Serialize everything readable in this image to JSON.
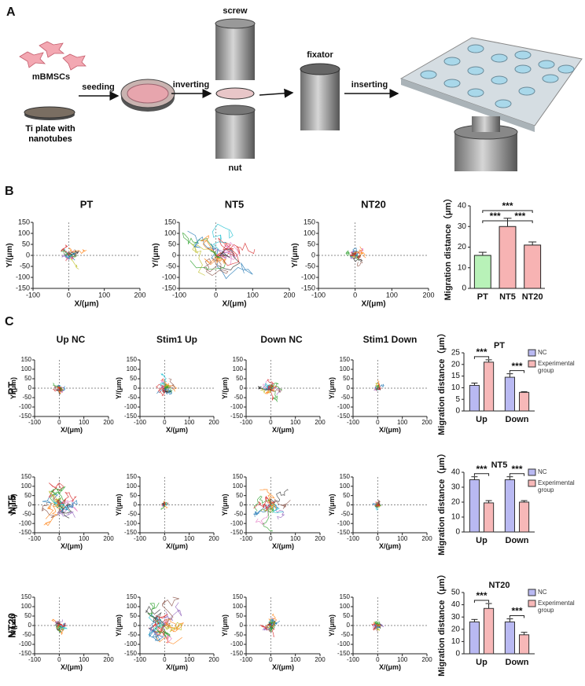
{
  "panel_a": {
    "label": "A",
    "cells": "mBMSCs",
    "plate": "Ti plate with nanotubes",
    "seeding": "seeding",
    "inverting": "inverting",
    "screw": "screw",
    "nut": "nut",
    "fixator": "fixator",
    "inserting": "inserting"
  },
  "panel_b": {
    "label": "B"
  },
  "panel_c": {
    "label": "C",
    "columns": [
      "Up NC",
      "Stim1 Up",
      "Down NC",
      "Stim1 Down"
    ],
    "rows": [
      "PT",
      "NT5",
      "NT20"
    ]
  },
  "chart_data": [
    {
      "type": "trajectory",
      "title": "PT",
      "xlabel": "X/(μm)",
      "ylabel": "Y/(μm)",
      "xlim": [
        -100,
        200
      ],
      "ylim": [
        -150,
        150
      ],
      "xticks": [
        -100,
        0,
        100,
        200
      ],
      "yticks": [
        -150,
        -100,
        -50,
        0,
        50,
        100,
        150
      ]
    },
    {
      "type": "trajectory",
      "title": "NT5",
      "xlabel": "X/(μm)",
      "ylabel": "Y/(μm)",
      "xlim": [
        -100,
        200
      ],
      "ylim": [
        -150,
        150
      ],
      "xticks": [
        -100,
        0,
        100,
        200
      ],
      "yticks": [
        -150,
        -100,
        -50,
        0,
        50,
        100,
        150
      ]
    },
    {
      "type": "trajectory",
      "title": "NT20",
      "xlabel": "X/(μm)",
      "ylabel": "Y/(μm)",
      "xlim": [
        -100,
        200
      ],
      "ylim": [
        -150,
        150
      ],
      "xticks": [
        -100,
        0,
        100,
        200
      ],
      "yticks": [
        -150,
        -100,
        -50,
        0,
        50,
        100,
        150
      ]
    },
    {
      "type": "bar",
      "ylabel": "Migration distance（μm）",
      "categories": [
        "PT",
        "NT5",
        "NT20"
      ],
      "values": [
        16,
        30,
        21
      ],
      "errors": [
        1.5,
        4,
        1.5
      ],
      "colors": [
        "#b8f2b8",
        "#f7b3b3",
        "#f7b3b3"
      ],
      "ylim": [
        0,
        40
      ],
      "yticks": [
        0,
        10,
        20,
        30,
        40
      ],
      "annotations": [
        "***",
        "***",
        "***"
      ]
    },
    {
      "type": "trajectory",
      "xlabel": "X/(μm)",
      "ylabel": "Y/(μm)",
      "xlim": [
        -100,
        200
      ],
      "ylim": [
        -150,
        150
      ],
      "xticks": [
        -100,
        0,
        100,
        200
      ],
      "yticks": [
        -150,
        -100,
        -50,
        0,
        50,
        100,
        150
      ]
    },
    {
      "type": "trajectory",
      "xlabel": "X/(μm)",
      "ylabel": "Y/(μm)",
      "xlim": [
        -100,
        200
      ],
      "ylim": [
        -150,
        150
      ],
      "xticks": [
        -100,
        0,
        100,
        200
      ],
      "yticks": [
        -150,
        -100,
        -50,
        0,
        50,
        100,
        150
      ]
    },
    {
      "type": "trajectory",
      "xlabel": "X/(μm)",
      "ylabel": "Y/(μm)",
      "xlim": [
        -100,
        200
      ],
      "ylim": [
        -150,
        150
      ],
      "xticks": [
        -100,
        0,
        100,
        200
      ],
      "yticks": [
        -150,
        -100,
        -50,
        0,
        50,
        100,
        150
      ]
    },
    {
      "type": "trajectory",
      "xlabel": "X/(μm)",
      "ylabel": "Y/(μm)",
      "xlim": [
        -100,
        200
      ],
      "ylim": [
        -150,
        150
      ],
      "xticks": [
        -100,
        0,
        100,
        200
      ],
      "yticks": [
        -150,
        -100,
        -50,
        0,
        50,
        100,
        150
      ]
    },
    {
      "type": "trajectory",
      "xlabel": "X/(μm)",
      "ylabel": "Y/(μm)",
      "xlim": [
        -100,
        200
      ],
      "ylim": [
        -150,
        150
      ],
      "xticks": [
        -100,
        0,
        100,
        200
      ],
      "yticks": [
        -150,
        -100,
        -50,
        0,
        50,
        100,
        150
      ]
    },
    {
      "type": "trajectory",
      "xlabel": "X/(μm)",
      "ylabel": "Y/(μm)",
      "xlim": [
        -100,
        200
      ],
      "ylim": [
        -150,
        150
      ],
      "xticks": [
        -100,
        0,
        100,
        200
      ],
      "yticks": [
        -150,
        -100,
        -50,
        0,
        50,
        100,
        150
      ]
    },
    {
      "type": "trajectory",
      "xlabel": "X/(μm)",
      "ylabel": "Y/(μm)",
      "xlim": [
        -100,
        200
      ],
      "ylim": [
        -150,
        150
      ],
      "xticks": [
        -100,
        0,
        100,
        200
      ],
      "yticks": [
        -150,
        -100,
        -50,
        0,
        50,
        100,
        150
      ]
    },
    {
      "type": "trajectory",
      "xlabel": "X/(μm)",
      "ylabel": "Y/(μm)",
      "xlim": [
        -100,
        200
      ],
      "ylim": [
        -150,
        150
      ],
      "xticks": [
        -100,
        0,
        100,
        200
      ],
      "yticks": [
        -150,
        -100,
        -50,
        0,
        50,
        100,
        150
      ]
    },
    {
      "type": "trajectory",
      "xlabel": "X/(μm)",
      "ylabel": "Y/(μm)",
      "xlim": [
        -100,
        200
      ],
      "ylim": [
        -150,
        150
      ],
      "xticks": [
        -100,
        0,
        100,
        200
      ],
      "yticks": [
        -150,
        -100,
        -50,
        0,
        50,
        100,
        150
      ]
    },
    {
      "type": "trajectory",
      "xlabel": "X/(μm)",
      "ylabel": "Y/(μm)",
      "xlim": [
        -100,
        200
      ],
      "ylim": [
        -150,
        150
      ],
      "xticks": [
        -100,
        0,
        100,
        200
      ],
      "yticks": [
        -150,
        -100,
        -50,
        0,
        50,
        100,
        150
      ]
    },
    {
      "type": "trajectory",
      "xlabel": "X/(μm)",
      "ylabel": "Y/(μm)",
      "xlim": [
        -100,
        200
      ],
      "ylim": [
        -150,
        150
      ],
      "xticks": [
        -100,
        0,
        100,
        200
      ],
      "yticks": [
        -150,
        -100,
        -50,
        0,
        50,
        100,
        150
      ]
    },
    {
      "type": "trajectory",
      "xlabel": "X/(μm)",
      "ylabel": "Y/(μm)",
      "xlim": [
        -100,
        200
      ],
      "ylim": [
        -150,
        150
      ],
      "xticks": [
        -100,
        0,
        100,
        200
      ],
      "yticks": [
        -150,
        -100,
        -50,
        0,
        50,
        100,
        150
      ]
    },
    {
      "type": "grouped_bar",
      "title": "PT",
      "ylabel": "Migration distance（μm）",
      "categories": [
        "Up",
        "Down"
      ],
      "series": [
        {
          "name": "NC",
          "color": "#b9b9f2",
          "values": [
            11,
            14.5
          ],
          "errors": [
            1,
            1.5
          ]
        },
        {
          "name": "Experimental group",
          "color": "#f7b8b8",
          "values": [
            21,
            8
          ],
          "errors": [
            1,
            0.3
          ]
        }
      ],
      "ylim": [
        0,
        25
      ],
      "yticks": [
        0,
        5,
        10,
        15,
        20,
        25
      ],
      "annotations": [
        "***",
        "***"
      ]
    },
    {
      "type": "grouped_bar",
      "title": "NT5",
      "ylabel": "Migration distance（μm）",
      "categories": [
        "Up",
        "Down"
      ],
      "series": [
        {
          "name": "NC",
          "color": "#b9b9f2",
          "values": [
            35,
            35
          ],
          "errors": [
            2,
            2
          ]
        },
        {
          "name": "Experimental group",
          "color": "#f7b8b8",
          "values": [
            19.5,
            20
          ],
          "errors": [
            1.5,
            1
          ]
        }
      ],
      "ylim": [
        0,
        40
      ],
      "yticks": [
        0,
        10,
        20,
        30,
        40
      ],
      "annotations": [
        "***",
        "***"
      ]
    },
    {
      "type": "grouped_bar",
      "title": "NT20",
      "ylabel": "Migration distance（μm）",
      "categories": [
        "Up",
        "Down"
      ],
      "series": [
        {
          "name": "NC",
          "color": "#b9b9f2",
          "values": [
            26,
            26
          ],
          "errors": [
            2,
            2.5
          ]
        },
        {
          "name": "Experimental group",
          "color": "#f7b8b8",
          "values": [
            37,
            15.5
          ],
          "errors": [
            4,
            2
          ]
        }
      ],
      "ylim": [
        0,
        50
      ],
      "yticks": [
        0,
        10,
        20,
        30,
        40,
        50
      ],
      "annotations": [
        "***",
        "***"
      ]
    }
  ]
}
